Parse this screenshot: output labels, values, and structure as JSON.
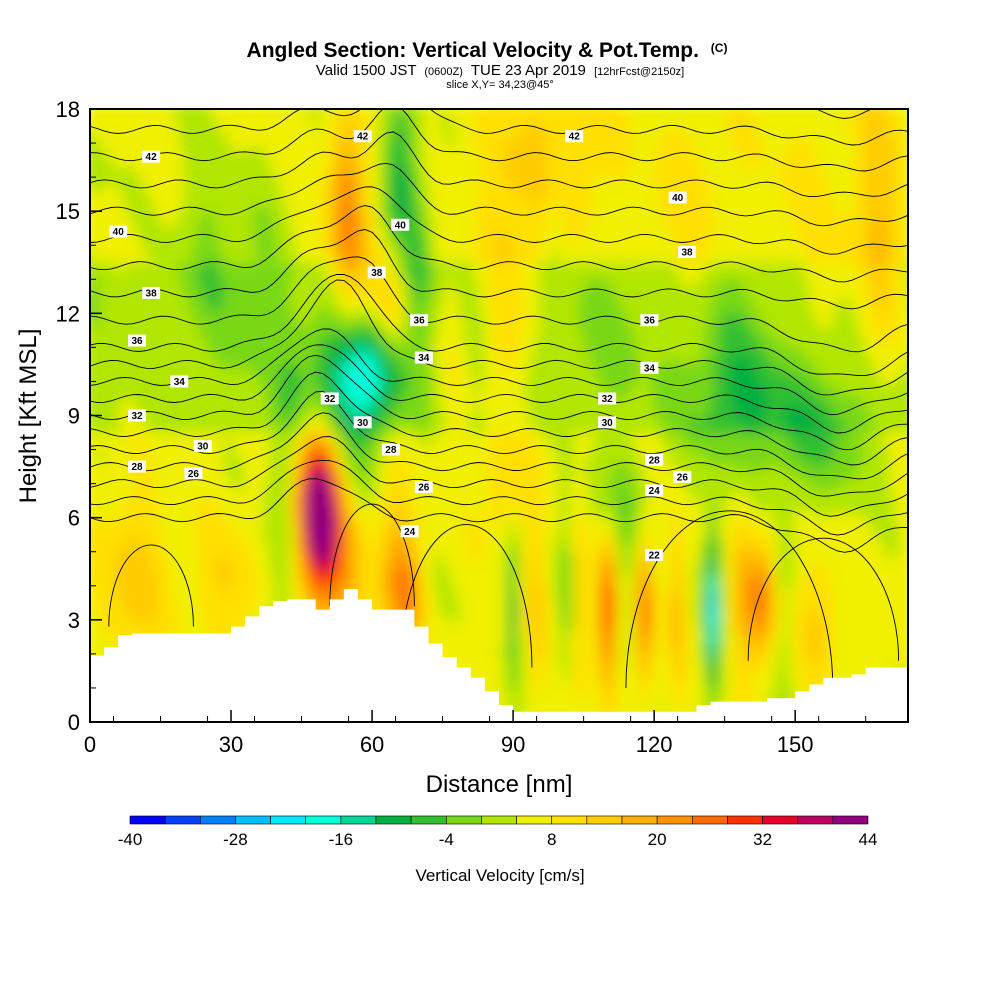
{
  "title": {
    "main": "Angled Section: Vertical Velocity & Pot.Temp.",
    "main_suffix": "(C)",
    "line2_a": "Valid 1500 JST",
    "line2_b": "(0600Z)",
    "line2_c": "TUE 23 Apr 2019",
    "line2_d": "[12hrFcst@2150z]",
    "line3": "slice X,Y= 34,23@45°"
  },
  "chart_data": {
    "type": "heatmap",
    "xlabel": "Distance [nm]",
    "ylabel": "Height [Kft MSL]",
    "xlim": [
      0,
      174
    ],
    "ylim": [
      0,
      18
    ],
    "x_ticks": [
      "0",
      "30",
      "60",
      "90",
      "120",
      "150"
    ],
    "x_tick_values": [
      0,
      30,
      60,
      90,
      120,
      150
    ],
    "y_ticks": [
      "0",
      "3",
      "6",
      "9",
      "12",
      "15",
      "18"
    ],
    "y_tick_values": [
      0,
      3,
      6,
      9,
      12,
      15,
      18
    ],
    "colorbar": {
      "label": "Vertical Velocity [cm/s]",
      "labels": [
        "-40",
        "-28",
        "-16",
        "-4",
        "8",
        "20",
        "32",
        "44"
      ],
      "label_values": [
        -40,
        -28,
        -16,
        -4,
        8,
        20,
        32,
        44
      ],
      "levels": [
        -40,
        -36,
        -32,
        -28,
        -24,
        -20,
        -16,
        -12,
        -8,
        -4,
        0,
        4,
        8,
        12,
        16,
        20,
        24,
        28,
        32,
        36,
        40,
        44
      ],
      "colors": [
        "#0000ff",
        "#0040ff",
        "#0080ff",
        "#00c0ff",
        "#00e8ff",
        "#00ffd8",
        "#00d89a",
        "#00b040",
        "#30c030",
        "#78d818",
        "#b0e600",
        "#f0f000",
        "#ffe000",
        "#ffcc00",
        "#ffb000",
        "#ff9000",
        "#ff6a00",
        "#ff3000",
        "#e8002a",
        "#c00060",
        "#900080"
      ]
    },
    "vertical_velocity_blobs": [
      {
        "x": 48.5,
        "y": 6.2,
        "sx": 3.2,
        "sy": 1.7,
        "v": 46
      },
      {
        "x": 54,
        "y": 4.5,
        "sx": 4,
        "sy": 1.8,
        "v": 10
      },
      {
        "x": 65,
        "y": 4.3,
        "sx": 2.5,
        "sy": 1.8,
        "v": 13
      },
      {
        "x": 68,
        "y": 3.8,
        "sx": 2,
        "sy": 1,
        "v": 12
      },
      {
        "x": 41.5,
        "y": 5.3,
        "sx": 2.8,
        "sy": 2.8,
        "v": -8
      },
      {
        "x": 56,
        "y": 7.5,
        "sx": 3.5,
        "sy": 1.1,
        "v": -6
      },
      {
        "x": 58,
        "y": 10.2,
        "sx": 5.5,
        "sy": 1.2,
        "v": -22
      },
      {
        "x": 50,
        "y": 9.6,
        "sx": 6,
        "sy": 1.6,
        "v": -8
      },
      {
        "x": 64,
        "y": 12.2,
        "sx": 3,
        "sy": 1.0,
        "v": 12
      },
      {
        "x": 55.5,
        "y": 13.2,
        "sx": 2.8,
        "sy": 2.2,
        "v": 12
      },
      {
        "x": 54,
        "y": 15.6,
        "sx": 2.4,
        "sy": 1.6,
        "v": 12
      },
      {
        "x": 66,
        "y": 16.2,
        "sx": 2.4,
        "sy": 1.8,
        "v": -14
      },
      {
        "x": 70,
        "y": 13.5,
        "sx": 2.2,
        "sy": 1.8,
        "v": -9
      },
      {
        "x": 77,
        "y": 10.5,
        "sx": 2,
        "sy": 2,
        "v": 4
      },
      {
        "x": 9,
        "y": 4.2,
        "sx": 5,
        "sy": 1.7,
        "v": 9
      },
      {
        "x": 29,
        "y": 4,
        "sx": 6,
        "sy": 1.4,
        "v": 6
      },
      {
        "x": 2,
        "y": 15.5,
        "sx": 3,
        "sy": 3,
        "v": -2
      },
      {
        "x": 25,
        "y": 14,
        "sx": 5,
        "sy": 2.4,
        "v": -6
      },
      {
        "x": 36,
        "y": 13,
        "sx": 4,
        "sy": 2,
        "v": -6
      },
      {
        "x": 90,
        "y": 14.5,
        "sx": 6,
        "sy": 3,
        "v": 5
      },
      {
        "x": 100,
        "y": 16.5,
        "sx": 9,
        "sy": 1.8,
        "v": 6
      },
      {
        "x": 128,
        "y": 14.5,
        "sx": 7,
        "sy": 2.5,
        "v": 5
      },
      {
        "x": 150,
        "y": 14,
        "sx": 9,
        "sy": 3,
        "v": 4
      },
      {
        "x": 168,
        "y": 14.5,
        "sx": 3.5,
        "sy": 3.5,
        "v": 10
      },
      {
        "x": 99,
        "y": 15,
        "sx": 1.6,
        "sy": 1.6,
        "v": -6
      },
      {
        "x": 138,
        "y": 12,
        "sx": 7,
        "sy": 2.2,
        "v": -6
      },
      {
        "x": 140,
        "y": 9.2,
        "sx": 11,
        "sy": 1.5,
        "v": -9
      },
      {
        "x": 158,
        "y": 8.2,
        "sx": 9,
        "sy": 1.3,
        "v": -8
      },
      {
        "x": 88,
        "y": 11.2,
        "sx": 3,
        "sy": 1.3,
        "v": 5
      },
      {
        "x": 110,
        "y": 11.5,
        "sx": 8,
        "sy": 1.6,
        "v": -4
      },
      {
        "x": 90,
        "y": 3.5,
        "sx": 0.9,
        "sy": 1.6,
        "v": -14
      },
      {
        "x": 95,
        "y": 3.5,
        "sx": 1.4,
        "sy": 2,
        "v": 8
      },
      {
        "x": 101,
        "y": 3.5,
        "sx": 0.9,
        "sy": 1.6,
        "v": -8
      },
      {
        "x": 104.5,
        "y": 3.6,
        "sx": 1.2,
        "sy": 2,
        "v": 9
      },
      {
        "x": 110,
        "y": 3.2,
        "sx": 1.2,
        "sy": 1.5,
        "v": 26
      },
      {
        "x": 114,
        "y": 4.5,
        "sx": 1.0,
        "sy": 1.6,
        "v": -4
      },
      {
        "x": 118,
        "y": 3.2,
        "sx": 1.2,
        "sy": 1.5,
        "v": 22
      },
      {
        "x": 125,
        "y": 3.5,
        "sx": 1.2,
        "sy": 1.8,
        "v": 11
      },
      {
        "x": 132.5,
        "y": 3.3,
        "sx": 1.1,
        "sy": 1.7,
        "v": -26
      },
      {
        "x": 139,
        "y": 3.7,
        "sx": 1.5,
        "sy": 1.9,
        "v": 12
      },
      {
        "x": 143,
        "y": 3.6,
        "sx": 1.8,
        "sy": 1.2,
        "v": 20
      },
      {
        "x": 148,
        "y": 3.5,
        "sx": 1.5,
        "sy": 2.2,
        "v": -4
      },
      {
        "x": 155,
        "y": 3.0,
        "sx": 3,
        "sy": 1.4,
        "v": 8
      },
      {
        "x": 112,
        "y": 6.5,
        "sx": 6,
        "sy": 1.1,
        "v": -6
      },
      {
        "x": 88,
        "y": 6.8,
        "sx": 4,
        "sy": 1.2,
        "v": 6
      }
    ],
    "terrain": {
      "x": [
        0,
        3,
        6,
        9,
        12,
        15,
        18,
        21,
        24,
        27,
        30,
        33,
        36,
        39,
        42,
        45,
        48,
        51,
        54,
        57,
        60,
        63,
        66,
        69,
        72,
        75,
        78,
        81,
        84,
        87,
        90,
        93,
        96,
        99,
        102,
        105,
        108,
        111,
        114,
        117,
        120,
        123,
        126,
        129,
        132,
        135,
        138,
        141,
        144,
        147,
        150,
        153,
        156,
        159,
        162,
        165,
        168,
        171,
        174
      ],
      "height": [
        1.95,
        2.2,
        2.55,
        2.6,
        2.6,
        2.6,
        2.6,
        2.6,
        2.6,
        2.6,
        2.8,
        3.1,
        3.4,
        3.55,
        3.6,
        3.6,
        3.3,
        3.6,
        3.9,
        3.6,
        3.3,
        3.3,
        3.3,
        2.8,
        2.3,
        1.9,
        1.6,
        1.3,
        0.9,
        0.5,
        0.3,
        0.3,
        0.3,
        0.3,
        0.3,
        0.3,
        0.3,
        0.3,
        0.3,
        0.3,
        0.3,
        0.3,
        0.3,
        0.5,
        0.6,
        0.6,
        0.6,
        0.6,
        0.7,
        0.7,
        0.9,
        1.1,
        1.3,
        1.3,
        1.4,
        1.6,
        1.6,
        1.6,
        1.6
      ]
    },
    "isentropes": [
      {
        "level": 22,
        "labels": [
          [
            120,
            4.9
          ]
        ]
      },
      {
        "level": 24,
        "labels": [
          [
            68,
            5.6
          ],
          [
            120,
            6.8
          ]
        ]
      },
      {
        "level": 26,
        "labels": [
          [
            22,
            7.3
          ],
          [
            71,
            6.9
          ],
          [
            126,
            7.2
          ]
        ]
      },
      {
        "level": 28,
        "labels": [
          [
            10,
            7.5
          ],
          [
            64,
            8.0
          ],
          [
            120,
            7.7
          ]
        ]
      },
      {
        "level": 30,
        "labels": [
          [
            24,
            8.1
          ],
          [
            58,
            8.8
          ],
          [
            110,
            8.8
          ]
        ]
      },
      {
        "level": 32,
        "labels": [
          [
            10,
            9.0
          ],
          [
            51,
            9.5
          ],
          [
            110,
            9.5
          ]
        ]
      },
      {
        "level": 34,
        "labels": [
          [
            19,
            10.0
          ],
          [
            71,
            10.7
          ],
          [
            119,
            10.4
          ]
        ]
      },
      {
        "level": 36,
        "labels": [
          [
            10,
            11.2
          ],
          [
            70,
            11.8
          ],
          [
            119,
            11.8
          ]
        ]
      },
      {
        "level": 38,
        "labels": [
          [
            13,
            12.6
          ],
          [
            61,
            13.2
          ],
          [
            127,
            13.8
          ]
        ]
      },
      {
        "level": 40,
        "labels": [
          [
            6,
            14.4
          ],
          [
            66,
            14.6
          ],
          [
            125,
            15.4
          ]
        ]
      },
      {
        "level": 42,
        "labels": [
          [
            13,
            16.6
          ],
          [
            58,
            17.2
          ],
          [
            103,
            17.2
          ]
        ]
      }
    ]
  }
}
